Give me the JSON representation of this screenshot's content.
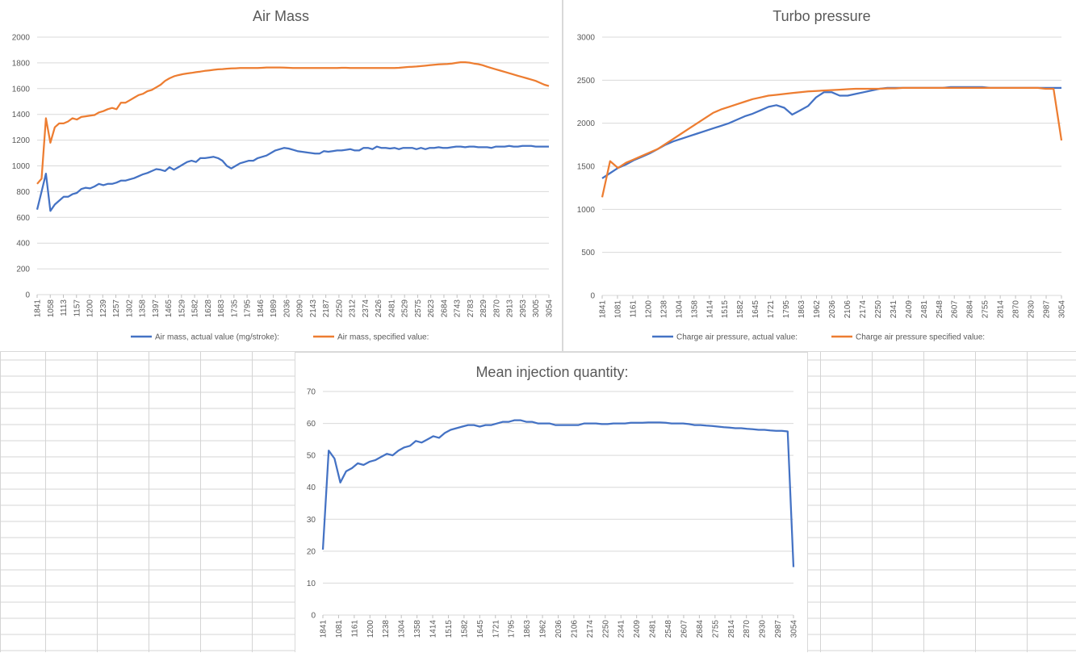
{
  "colors": {
    "series_blue": "#4472C4",
    "series_orange": "#ED7D31",
    "grid": "#d9d9d9",
    "text": "#595959"
  },
  "chart_data": [
    {
      "type": "line",
      "title": "Air Mass",
      "xlabel": "",
      "ylabel": "",
      "ylim": [
        0,
        2000
      ],
      "y_ticks": [
        "0",
        "200",
        "400",
        "600",
        "800",
        "1000",
        "1200",
        "1400",
        "1600",
        "1800",
        "2000"
      ],
      "x_tick_labels": [
        "1841",
        "1058",
        "1113",
        "1157",
        "1200",
        "1239",
        "1257",
        "1302",
        "1358",
        "1397",
        "1465",
        "1529",
        "1582",
        "1628",
        "1683",
        "1735",
        "1795",
        "1846",
        "1989",
        "2036",
        "2090",
        "2143",
        "2187",
        "2250",
        "2312",
        "2374",
        "2426",
        "2481",
        "2529",
        "2575",
        "2623",
        "2684",
        "2743",
        "2783",
        "2829",
        "2870",
        "2913",
        "2953",
        "3005",
        "3054"
      ],
      "grid": true,
      "legend_position": "bottom",
      "series": [
        {
          "name": "Air mass, actual value (mg/stroke):",
          "color": "#4472C4",
          "values": [
            660,
            800,
            940,
            650,
            700,
            730,
            760,
            760,
            780,
            790,
            820,
            830,
            825,
            840,
            860,
            850,
            860,
            860,
            870,
            885,
            885,
            895,
            905,
            920,
            935,
            945,
            960,
            975,
            970,
            960,
            990,
            970,
            990,
            1010,
            1030,
            1040,
            1030,
            1060,
            1060,
            1065,
            1070,
            1060,
            1040,
            1000,
            980,
            1000,
            1020,
            1030,
            1040,
            1040,
            1060,
            1070,
            1080,
            1100,
            1120,
            1130,
            1140,
            1135,
            1125,
            1115,
            1110,
            1105,
            1100,
            1095,
            1095,
            1115,
            1110,
            1115,
            1120,
            1120,
            1125,
            1130,
            1120,
            1120,
            1140,
            1140,
            1130,
            1150,
            1140,
            1140,
            1135,
            1140,
            1130,
            1140,
            1140,
            1140,
            1130,
            1140,
            1130,
            1140,
            1140,
            1145,
            1140,
            1140,
            1145,
            1150,
            1150,
            1145,
            1150,
            1150,
            1145,
            1145,
            1145,
            1140,
            1150,
            1150,
            1150,
            1155,
            1150,
            1150,
            1155,
            1155,
            1155,
            1150,
            1150,
            1150,
            1150
          ]
        },
        {
          "name": "Air mass, specified value:",
          "color": "#ED7D31",
          "values": [
            860,
            900,
            1370,
            1180,
            1300,
            1330,
            1330,
            1345,
            1370,
            1360,
            1380,
            1385,
            1390,
            1395,
            1415,
            1425,
            1440,
            1450,
            1440,
            1490,
            1490,
            1510,
            1530,
            1550,
            1560,
            1580,
            1590,
            1610,
            1630,
            1660,
            1680,
            1695,
            1705,
            1712,
            1718,
            1722,
            1728,
            1732,
            1738,
            1742,
            1746,
            1750,
            1752,
            1755,
            1757,
            1758,
            1760,
            1760,
            1760,
            1760,
            1760,
            1762,
            1764,
            1764,
            1764,
            1764,
            1763,
            1762,
            1760,
            1760,
            1760,
            1760,
            1760,
            1760,
            1760,
            1760,
            1760,
            1760,
            1760,
            1762,
            1762,
            1760,
            1760,
            1760,
            1760,
            1760,
            1760,
            1760,
            1760,
            1760,
            1760,
            1760,
            1762,
            1765,
            1768,
            1770,
            1772,
            1775,
            1778,
            1782,
            1785,
            1788,
            1790,
            1792,
            1795,
            1800,
            1805,
            1805,
            1802,
            1795,
            1790,
            1782,
            1770,
            1760,
            1750,
            1740,
            1730,
            1720,
            1710,
            1700,
            1690,
            1680,
            1670,
            1660,
            1645,
            1630,
            1620
          ]
        }
      ]
    },
    {
      "type": "line",
      "title": "Turbo pressure",
      "xlabel": "",
      "ylabel": "",
      "ylim": [
        0,
        3000
      ],
      "y_ticks": [
        "0",
        "500",
        "1000",
        "1500",
        "2000",
        "2500",
        "3000"
      ],
      "x_tick_labels": [
        "1841",
        "1081",
        "1161",
        "1200",
        "1238",
        "1304",
        "1358",
        "1414",
        "1515",
        "1582",
        "1645",
        "1721",
        "1795",
        "1863",
        "1962",
        "2036",
        "2106",
        "2174",
        "2250",
        "2341",
        "2409",
        "2481",
        "2548",
        "2607",
        "2684",
        "2755",
        "2814",
        "2870",
        "2930",
        "2987",
        "3054"
      ],
      "grid": true,
      "legend_position": "bottom",
      "series": [
        {
          "name": "Charge air pressure, actual value:",
          "color": "#4472C4",
          "values": [
            1360,
            1420,
            1480,
            1520,
            1570,
            1610,
            1650,
            1700,
            1750,
            1790,
            1820,
            1850,
            1880,
            1910,
            1940,
            1970,
            2000,
            2040,
            2080,
            2110,
            2150,
            2190,
            2210,
            2180,
            2100,
            2150,
            2200,
            2300,
            2360,
            2360,
            2320,
            2320,
            2340,
            2360,
            2380,
            2400,
            2410,
            2410,
            2410,
            2410,
            2410,
            2410,
            2410,
            2410,
            2420,
            2420,
            2420,
            2420,
            2420,
            2410,
            2410,
            2410,
            2410,
            2410,
            2410,
            2410,
            2410,
            2410,
            2410
          ]
        },
        {
          "name": "Charge air pressure specified value:",
          "color": "#ED7D31",
          "values": [
            1140,
            1560,
            1480,
            1540,
            1580,
            1620,
            1660,
            1700,
            1760,
            1820,
            1880,
            1940,
            2000,
            2060,
            2120,
            2160,
            2190,
            2220,
            2250,
            2280,
            2300,
            2320,
            2330,
            2340,
            2350,
            2360,
            2370,
            2375,
            2380,
            2385,
            2390,
            2395,
            2400,
            2400,
            2400,
            2400,
            2405,
            2405,
            2410,
            2410,
            2410,
            2410,
            2410,
            2410,
            2410,
            2410,
            2410,
            2410,
            2410,
            2410,
            2410,
            2410,
            2410,
            2410,
            2410,
            2410,
            2400,
            2400,
            1800
          ]
        }
      ]
    },
    {
      "type": "line",
      "title": "Mean injection quantity:",
      "xlabel": "",
      "ylabel": "",
      "ylim": [
        0,
        70
      ],
      "y_ticks": [
        "0",
        "10",
        "20",
        "30",
        "40",
        "50",
        "60",
        "70"
      ],
      "x_tick_labels": [
        "1841",
        "1081",
        "1161",
        "1200",
        "1238",
        "1304",
        "1358",
        "1414",
        "1515",
        "1582",
        "1645",
        "1721",
        "1795",
        "1863",
        "1962",
        "2036",
        "2106",
        "2174",
        "2250",
        "2341",
        "2409",
        "2481",
        "2548",
        "2607",
        "2684",
        "2755",
        "2814",
        "2870",
        "2930",
        "2987",
        "3054"
      ],
      "grid": true,
      "legend_position": "none",
      "series": [
        {
          "color": "#4472C4",
          "values": [
            20.5,
            51.5,
            49,
            41.5,
            45,
            46,
            47.5,
            47,
            48,
            48.5,
            49.5,
            50.5,
            50,
            51.5,
            52.5,
            53,
            54.5,
            54,
            55,
            56,
            55.5,
            57,
            58,
            58.5,
            59,
            59.5,
            59.5,
            59,
            59.5,
            59.5,
            60,
            60.5,
            60.5,
            61,
            61,
            60.5,
            60.5,
            60,
            60,
            60,
            59.5,
            59.5,
            59.5,
            59.5,
            59.5,
            60,
            60,
            60,
            59.8,
            59.8,
            60,
            60,
            60,
            60.2,
            60.2,
            60.2,
            60.3,
            60.3,
            60.3,
            60.2,
            60,
            60,
            60,
            59.8,
            59.5,
            59.5,
            59.3,
            59.2,
            59,
            58.8,
            58.7,
            58.5,
            58.5,
            58.3,
            58.2,
            58,
            58,
            57.8,
            57.7,
            57.7,
            57.5,
            15
          ]
        }
      ]
    }
  ]
}
